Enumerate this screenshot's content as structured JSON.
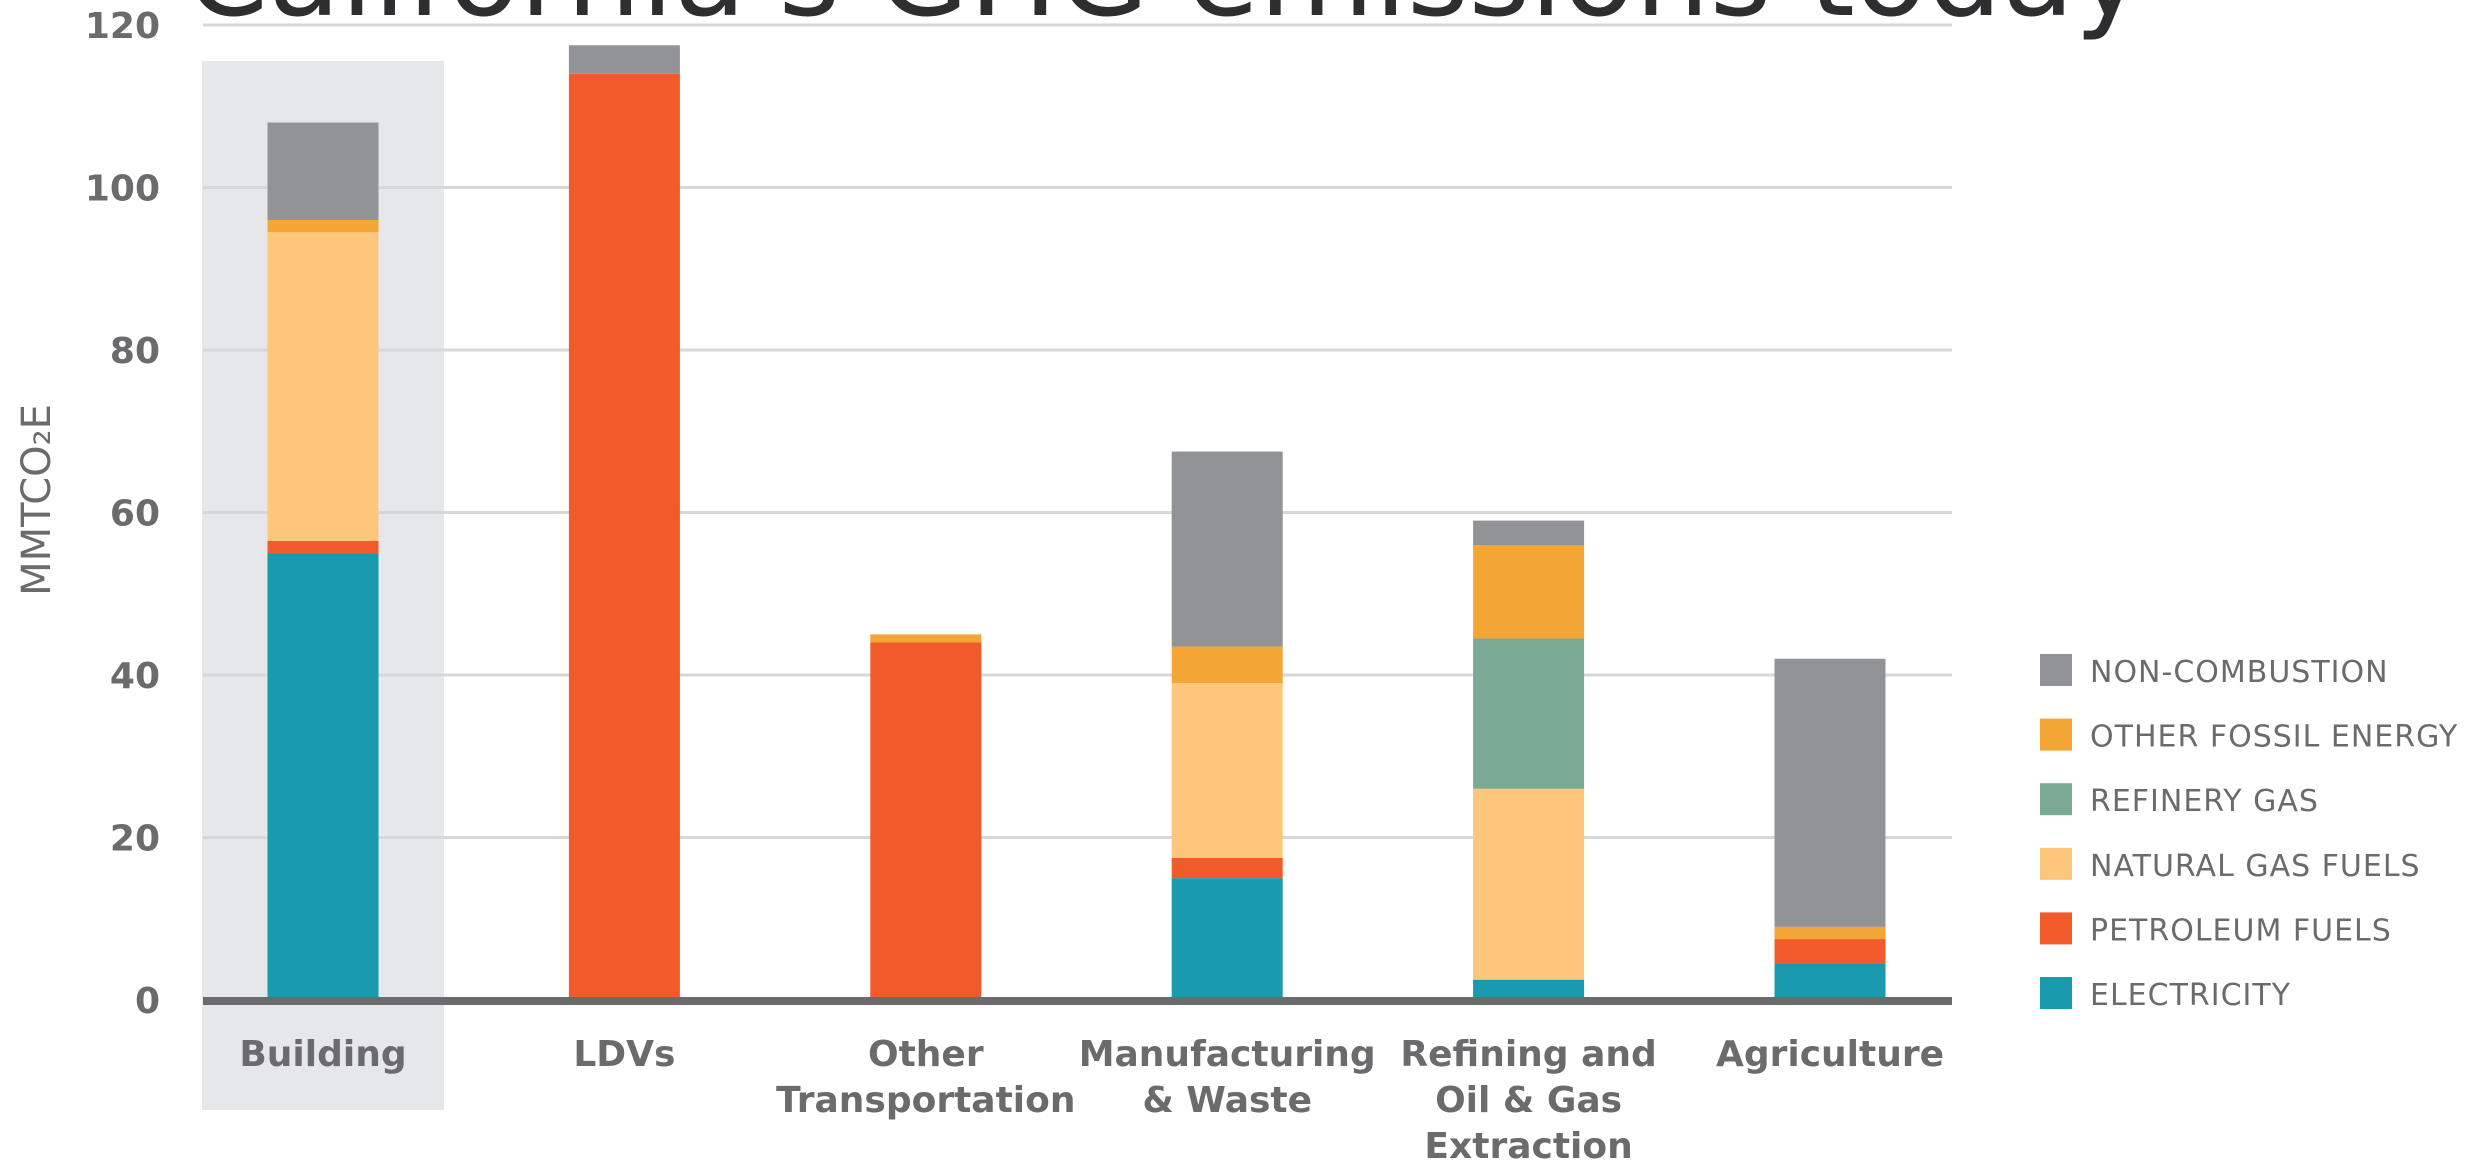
{
  "chart_data": {
    "type": "bar",
    "stacked": true,
    "title": "California's GHG emissions today",
    "ylabel": "MMTCO₂E",
    "xlabel": "",
    "ylim": [
      0,
      120
    ],
    "yticks": [
      0,
      20,
      40,
      60,
      80,
      100,
      120
    ],
    "grid": true,
    "legend_position": "right",
    "highlighted_category": "Building",
    "categories": [
      [
        "Building"
      ],
      [
        "LDVs"
      ],
      [
        "Other",
        "Transportation"
      ],
      [
        "Manufacturing",
        "& Waste"
      ],
      [
        "Refining and",
        "Oil & Gas",
        "Extraction"
      ],
      [
        "Agriculture"
      ]
    ],
    "series": [
      {
        "name": "ELECTRICITY",
        "color": "#1a9aaf",
        "values": [
          55,
          0,
          0,
          15,
          2.5,
          4.5
        ]
      },
      {
        "name": "PETROLEUM FUELS",
        "color": "#f15a2b",
        "values": [
          1.5,
          114,
          44,
          2.5,
          0,
          3
        ]
      },
      {
        "name": "NATURAL GAS FUELS",
        "color": "#fdc67b",
        "values": [
          38,
          0,
          0,
          21.5,
          23.5,
          0
        ]
      },
      {
        "name": "REFINERY GAS",
        "color": "#7aa994",
        "values": [
          0,
          0,
          0,
          0,
          18.5,
          0
        ]
      },
      {
        "name": "OTHER FOSSIL ENERGY",
        "color": "#f3a535",
        "values": [
          1.5,
          0,
          1,
          4.5,
          11.5,
          1.5
        ]
      },
      {
        "name": "NON-COMBUSTION",
        "color": "#929396",
        "values": [
          12,
          3.5,
          0,
          24,
          3,
          33
        ]
      }
    ]
  }
}
